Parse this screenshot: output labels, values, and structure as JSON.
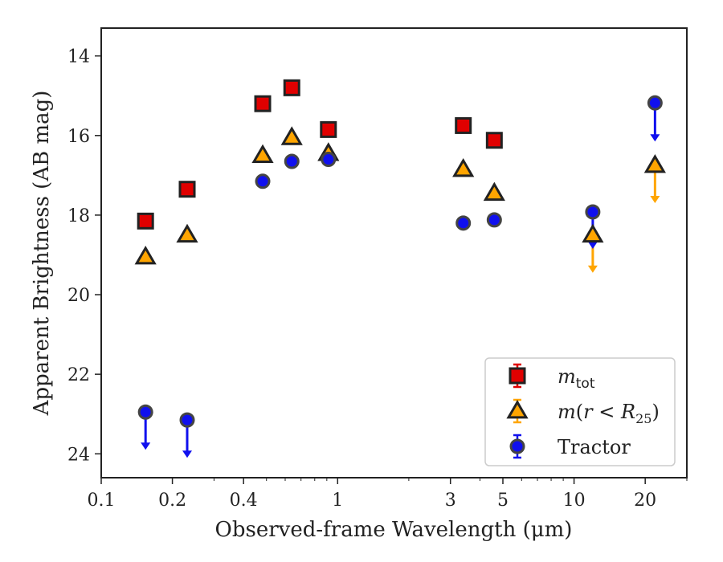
{
  "chart_data": {
    "type": "scatter",
    "xlabel": "Observed-frame Wavelength (μm)",
    "ylabel": "Apparent Brightness (AB mag)",
    "xscale": "log",
    "xlim": [
      0.1,
      30
    ],
    "ylim": [
      24.6,
      13.3
    ],
    "y_inverted": true,
    "grid": false,
    "legend_placement": "lower-right",
    "x_ticks": [
      0.1,
      0.2,
      0.4,
      1,
      3,
      5,
      10,
      20
    ],
    "x_tick_labels": [
      "0.1",
      "0.2",
      "0.4",
      "1",
      "3",
      "5",
      "10",
      "20"
    ],
    "y_ticks": [
      14,
      16,
      18,
      20,
      22,
      24
    ],
    "y_tick_labels": [
      "14",
      "16",
      "18",
      "20",
      "22",
      "24"
    ],
    "series": [
      {
        "legend_label": "m_tot",
        "marker": "square",
        "color": "#e00000",
        "edge_color": "#222222",
        "points": [
          {
            "x": 0.154,
            "y": 18.15
          },
          {
            "x": 0.231,
            "y": 17.35
          },
          {
            "x": 0.482,
            "y": 15.2
          },
          {
            "x": 0.64,
            "y": 14.8
          },
          {
            "x": 0.914,
            "y": 15.85
          },
          {
            "x": 3.4,
            "y": 15.75
          },
          {
            "x": 4.6,
            "y": 16.12
          }
        ]
      },
      {
        "legend_label": "m(r < R25)",
        "marker": "triangle",
        "color": "#ffa500",
        "edge_color": "#222222",
        "points": [
          {
            "x": 0.154,
            "y": 19.05
          },
          {
            "x": 0.231,
            "y": 18.5
          },
          {
            "x": 0.482,
            "y": 16.5
          },
          {
            "x": 0.64,
            "y": 16.05
          },
          {
            "x": 0.914,
            "y": 16.45
          },
          {
            "x": 3.4,
            "y": 16.85
          },
          {
            "x": 4.6,
            "y": 17.45
          },
          {
            "x": 12.0,
            "y": 18.5,
            "upper_limit": true,
            "arrow_to": 19.45
          },
          {
            "x": 22.0,
            "y": 16.75,
            "upper_limit": true,
            "arrow_to": 17.7
          }
        ]
      },
      {
        "legend_label": "Tractor",
        "marker": "circle",
        "color": "#1010ee",
        "edge_color": "#444444",
        "points": [
          {
            "x": 0.154,
            "y": 22.95,
            "upper_limit": true,
            "arrow_to": 23.9
          },
          {
            "x": 0.231,
            "y": 23.15,
            "upper_limit": true,
            "arrow_to": 24.1
          },
          {
            "x": 0.482,
            "y": 17.15
          },
          {
            "x": 0.64,
            "y": 16.65
          },
          {
            "x": 0.914,
            "y": 16.6
          },
          {
            "x": 3.4,
            "y": 18.2
          },
          {
            "x": 4.6,
            "y": 18.12
          },
          {
            "x": 12.0,
            "y": 17.92,
            "upper_limit": true,
            "arrow_to": 18.85
          },
          {
            "x": 22.0,
            "y": 15.18,
            "upper_limit": true,
            "arrow_to": 16.15
          }
        ]
      }
    ]
  }
}
